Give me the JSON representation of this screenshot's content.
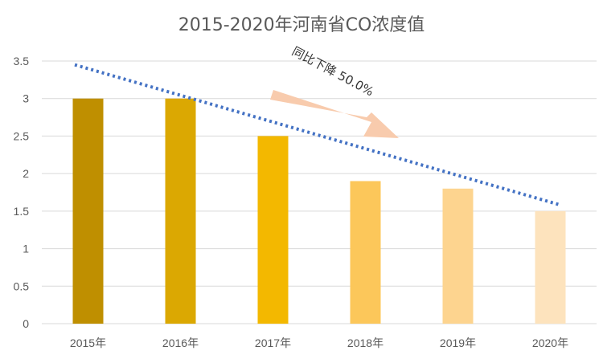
{
  "chart_data": {
    "type": "bar",
    "title": "2015-2020年河南省CO浓度值",
    "categories": [
      "2015年",
      "2016年",
      "2017年",
      "2018年",
      "2019年",
      "2020年"
    ],
    "values": [
      3.0,
      3.0,
      2.5,
      1.9,
      1.8,
      1.5
    ],
    "bar_colors": [
      "#bf8f00",
      "#dba802",
      "#f3b800",
      "#fcc75a",
      "#fdd48f",
      "#fde3bd"
    ],
    "ylim": [
      0,
      3.5
    ],
    "yticks": [
      "0",
      "0.5",
      "1",
      "1.5",
      "2",
      "2.5",
      "3",
      "3.5"
    ],
    "ytick_values": [
      0,
      0.5,
      1,
      1.5,
      2,
      2.5,
      3,
      3.5
    ],
    "grid": true,
    "trendline": {
      "style": "dotted",
      "color": "#4472c4",
      "start_value": 3.45,
      "end_value": 1.58
    },
    "annotation": {
      "text": "同比下降 50.0%",
      "arrow_color": "#f8cbad"
    }
  }
}
